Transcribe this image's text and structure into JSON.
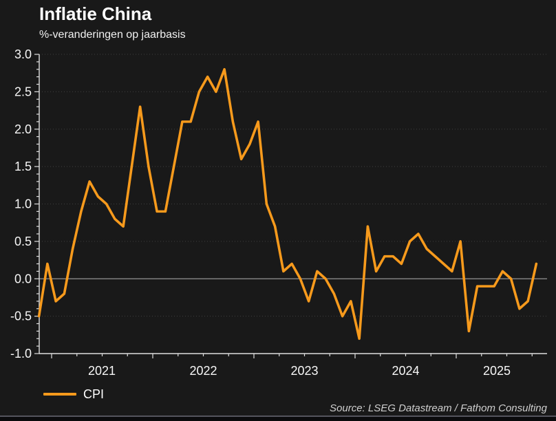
{
  "header": {
    "title": "Inflatie China",
    "subtitle": "%-veranderingen op jaarbasis"
  },
  "legend": {
    "items": [
      {
        "label": "CPI",
        "color": "#F79A1C"
      }
    ]
  },
  "footer": {
    "source": "Source: LSEG Datastream / Fathom Consulting"
  },
  "colors": {
    "background": "#191919",
    "accent_orange": "#F79A1C",
    "axis": "#e0e0e0",
    "tick_label": "#f7f7f7",
    "grid_dotted": "#404040",
    "zero_line": "#959595",
    "source_text": "#cfcfcf"
  },
  "chart_data": {
    "type": "line",
    "title": "Inflatie China",
    "subtitle": "%-veranderingen op jaarbasis",
    "unit": "% change year-on-year",
    "x_start": "2020-11",
    "x_end": "2025-10",
    "frequency": "monthly",
    "series": [
      {
        "name": "CPI",
        "color": "#F79A1C",
        "values": [
          -0.5,
          0.2,
          -0.3,
          -0.2,
          0.4,
          0.9,
          1.3,
          1.1,
          1.0,
          0.8,
          0.7,
          1.5,
          2.3,
          1.5,
          0.9,
          0.9,
          1.5,
          2.1,
          2.1,
          2.5,
          2.7,
          2.5,
          2.8,
          2.1,
          1.6,
          1.8,
          2.1,
          1.0,
          0.7,
          0.1,
          0.2,
          0.0,
          -0.3,
          0.1,
          0.0,
          -0.2,
          -0.5,
          -0.3,
          -0.8,
          0.7,
          0.1,
          0.3,
          0.3,
          0.2,
          0.5,
          0.6,
          0.4,
          0.3,
          0.2,
          0.1,
          0.5,
          -0.7,
          -0.1,
          -0.1,
          -0.1,
          0.1,
          0.0,
          -0.4,
          -0.3,
          0.2
        ]
      }
    ],
    "x_tick_labels": [
      "2021",
      "2022",
      "2023",
      "2024",
      "2025"
    ],
    "y_ticks": [
      3.0,
      2.5,
      2.0,
      1.5,
      1.0,
      0.5,
      0.0,
      -0.5,
      -1.0
    ],
    "ylim": [
      -1.0,
      3.0
    ],
    "grid": "dotted horizontal lines at 0.5 steps, solid gray line at 0",
    "legend_position": "bottom-left"
  }
}
